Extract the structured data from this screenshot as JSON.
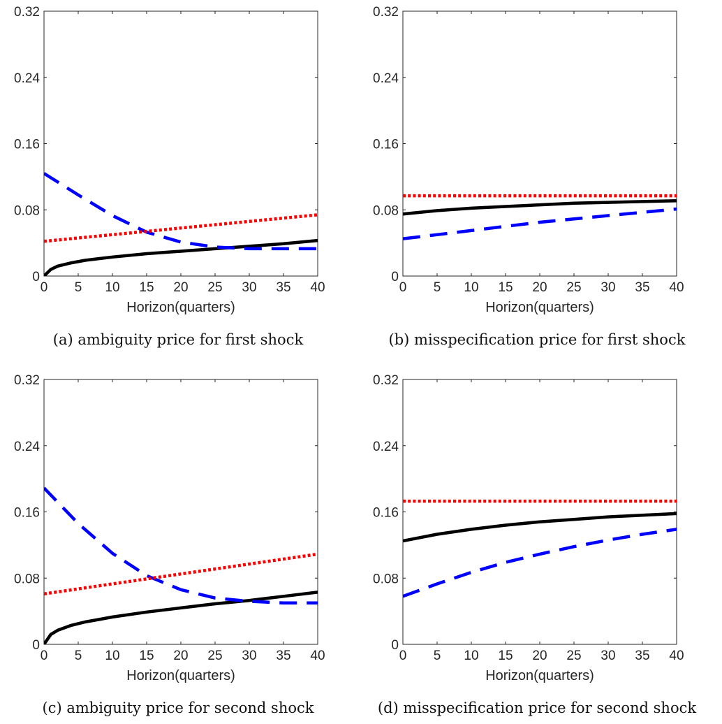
{
  "chart_data": [
    {
      "type": "line",
      "caption": "(a) ambiguity price for first shock",
      "xlabel": "Horizon(quarters)",
      "ylabel": "",
      "xlim": [
        0,
        40
      ],
      "ylim": [
        0,
        0.32
      ],
      "xticks": [
        "0",
        "5",
        "10",
        "15",
        "20",
        "25",
        "30",
        "35",
        "40"
      ],
      "yticks": [
        "0",
        "0.08",
        "0.16",
        "0.24",
        "0.32"
      ],
      "grid": false,
      "series": [
        {
          "style": "solid",
          "color": "#000000",
          "x": [
            0,
            1,
            2,
            4,
            6,
            8,
            10,
            15,
            20,
            25,
            30,
            35,
            40
          ],
          "values": [
            0.0,
            0.008,
            0.012,
            0.016,
            0.019,
            0.021,
            0.023,
            0.027,
            0.03,
            0.033,
            0.036,
            0.039,
            0.043
          ]
        },
        {
          "style": "dashed",
          "color": "#0000ff",
          "x": [
            0,
            5,
            10,
            15,
            20,
            25,
            30,
            35,
            40
          ],
          "values": [
            0.124,
            0.098,
            0.073,
            0.053,
            0.041,
            0.035,
            0.033,
            0.033,
            0.033
          ]
        },
        {
          "style": "dotted",
          "color": "#ff0000",
          "x": [
            0,
            10,
            20,
            30,
            40
          ],
          "values": [
            0.042,
            0.05,
            0.058,
            0.066,
            0.074
          ]
        }
      ]
    },
    {
      "type": "line",
      "caption": "(b) misspecification price for first shock",
      "xlabel": "Horizon(quarters)",
      "ylabel": "",
      "xlim": [
        0,
        40
      ],
      "ylim": [
        0,
        0.32
      ],
      "xticks": [
        "0",
        "5",
        "10",
        "15",
        "20",
        "25",
        "30",
        "35",
        "40"
      ],
      "yticks": [
        "0",
        "0.08",
        "0.16",
        "0.24",
        "0.32"
      ],
      "grid": false,
      "series": [
        {
          "style": "solid",
          "color": "#000000",
          "x": [
            0,
            5,
            10,
            15,
            20,
            25,
            30,
            35,
            40
          ],
          "values": [
            0.075,
            0.079,
            0.082,
            0.084,
            0.086,
            0.088,
            0.089,
            0.09,
            0.091
          ]
        },
        {
          "style": "dashed",
          "color": "#0000ff",
          "x": [
            0,
            5,
            10,
            15,
            20,
            25,
            30,
            35,
            40
          ],
          "values": [
            0.045,
            0.05,
            0.055,
            0.06,
            0.065,
            0.069,
            0.073,
            0.077,
            0.081
          ]
        },
        {
          "style": "dotted",
          "color": "#ff0000",
          "x": [
            0,
            40
          ],
          "values": [
            0.097,
            0.097
          ]
        }
      ]
    },
    {
      "type": "line",
      "caption": "(c) ambiguity price for second shock",
      "xlabel": "Horizon(quarters)",
      "ylabel": "",
      "xlim": [
        0,
        40
      ],
      "ylim": [
        0,
        0.32
      ],
      "xticks": [
        "0",
        "5",
        "10",
        "15",
        "20",
        "25",
        "30",
        "35",
        "40"
      ],
      "yticks": [
        "0",
        "0.08",
        "0.16",
        "0.24",
        "0.32"
      ],
      "grid": false,
      "series": [
        {
          "style": "solid",
          "color": "#000000",
          "x": [
            0,
            1,
            2,
            4,
            6,
            8,
            10,
            15,
            20,
            25,
            30,
            35,
            40
          ],
          "values": [
            0.0,
            0.012,
            0.017,
            0.023,
            0.027,
            0.03,
            0.033,
            0.039,
            0.044,
            0.049,
            0.053,
            0.058,
            0.063
          ]
        },
        {
          "style": "dashed",
          "color": "#0000ff",
          "x": [
            0,
            5,
            10,
            15,
            20,
            25,
            30,
            35,
            40
          ],
          "values": [
            0.189,
            0.146,
            0.11,
            0.083,
            0.066,
            0.056,
            0.052,
            0.05,
            0.05
          ]
        },
        {
          "style": "dotted",
          "color": "#ff0000",
          "x": [
            0,
            10,
            20,
            30,
            40
          ],
          "values": [
            0.061,
            0.073,
            0.085,
            0.097,
            0.109
          ]
        }
      ]
    },
    {
      "type": "line",
      "caption": "(d) misspecification price for second shock",
      "xlabel": "Horizon(quarters)",
      "ylabel": "",
      "xlim": [
        0,
        40
      ],
      "ylim": [
        0,
        0.32
      ],
      "xticks": [
        "0",
        "5",
        "10",
        "15",
        "20",
        "25",
        "30",
        "35",
        "40"
      ],
      "yticks": [
        "0",
        "0.08",
        "0.16",
        "0.24",
        "0.32"
      ],
      "grid": false,
      "series": [
        {
          "style": "solid",
          "color": "#000000",
          "x": [
            0,
            5,
            10,
            15,
            20,
            25,
            30,
            35,
            40
          ],
          "values": [
            0.125,
            0.133,
            0.139,
            0.144,
            0.148,
            0.151,
            0.154,
            0.156,
            0.158
          ]
        },
        {
          "style": "dashed",
          "color": "#0000ff",
          "x": [
            0,
            5,
            10,
            15,
            20,
            25,
            30,
            35,
            40
          ],
          "values": [
            0.058,
            0.073,
            0.087,
            0.099,
            0.109,
            0.118,
            0.126,
            0.133,
            0.139
          ]
        },
        {
          "style": "dotted",
          "color": "#ff0000",
          "x": [
            0,
            40
          ],
          "values": [
            0.173,
            0.173
          ]
        }
      ]
    }
  ]
}
